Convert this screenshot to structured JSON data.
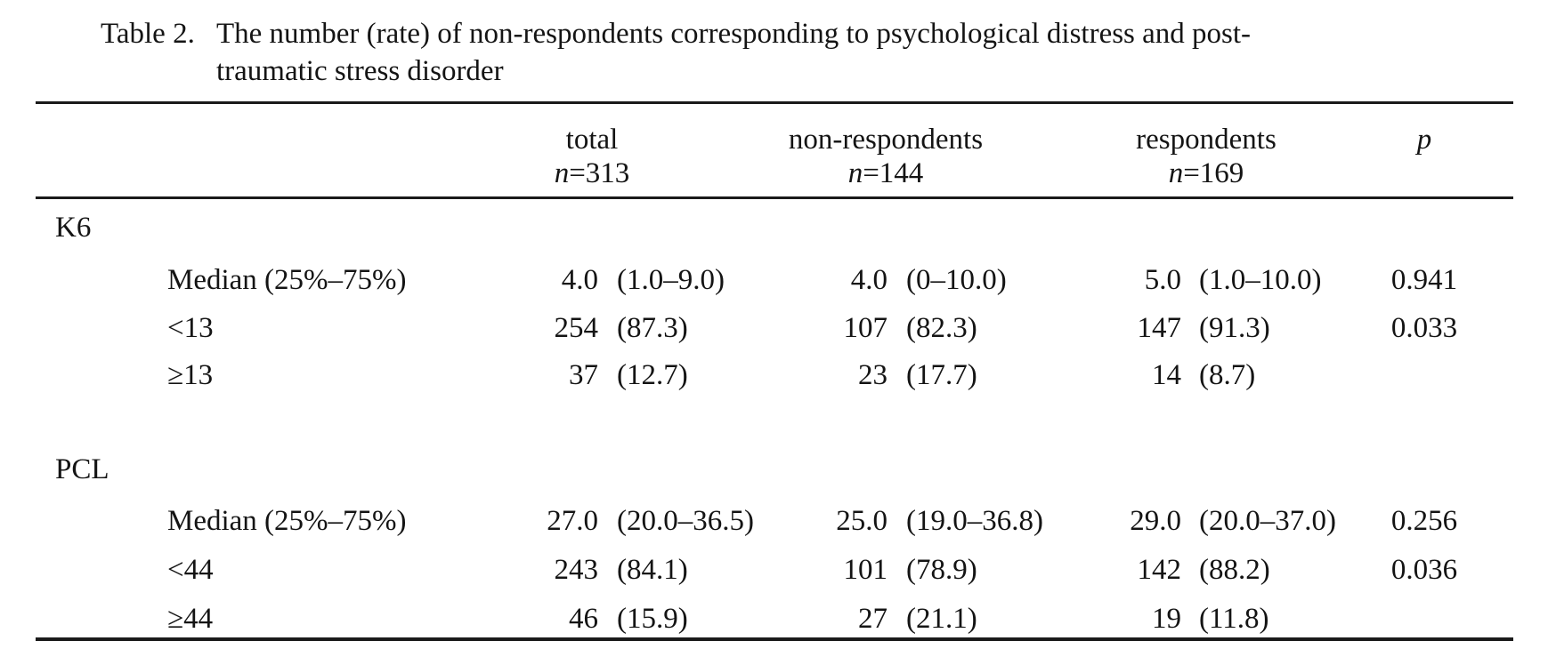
{
  "title": {
    "label": "Table 2.",
    "line1": "The number (rate) of non-respondents corresponding to psychological distress and post-",
    "line2": "traumatic stress disorder"
  },
  "header": {
    "columns": [
      {
        "name": "total",
        "n": "n",
        "count": "=313"
      },
      {
        "name": "non-respondents",
        "n": "n",
        "count": "=144"
      },
      {
        "name": "respondents",
        "n": "n",
        "count": "=169"
      }
    ],
    "p": "p"
  },
  "rows": [
    {
      "type": "section",
      "label": "K6"
    },
    {
      "type": "data",
      "label": "Median (25%–75%)",
      "tv": "4.0",
      "tp": "(1.0–9.0)",
      "nv": "4.0",
      "np": "(0–10.0)",
      "rv": "5.0",
      "rp": "(1.0–10.0)",
      "p": "0.941"
    },
    {
      "type": "data",
      "label": "<13",
      "tv": "254",
      "tp": "(87.3)",
      "nv": "107",
      "np": "(82.3)",
      "rv": "147",
      "rp": "(91.3)",
      "p": "0.033"
    },
    {
      "type": "data",
      "label": "≥13",
      "tv": "37",
      "tp": "(12.7)",
      "nv": "23",
      "np": "(17.7)",
      "rv": "14",
      "rp": "(8.7)",
      "p": ""
    },
    {
      "type": "spacer"
    },
    {
      "type": "section",
      "label": "PCL"
    },
    {
      "type": "data",
      "label": "Median (25%–75%)",
      "tv": "27.0",
      "tp": "(20.0–36.5)",
      "nv": "25.0",
      "np": "(19.0–36.8)",
      "rv": "29.0",
      "rp": "(20.0–37.0)",
      "p": "0.256"
    },
    {
      "type": "data",
      "label": "<44",
      "tv": "243",
      "tp": "(84.1)",
      "nv": "101",
      "np": "(78.9)",
      "rv": "142",
      "rp": "(88.2)",
      "p": "0.036"
    },
    {
      "type": "data",
      "label": "≥44",
      "tv": "46",
      "tp": "(15.9)",
      "nv": "27",
      "np": "(21.1)",
      "rv": "19",
      "rp": "(11.8)",
      "p": ""
    }
  ]
}
